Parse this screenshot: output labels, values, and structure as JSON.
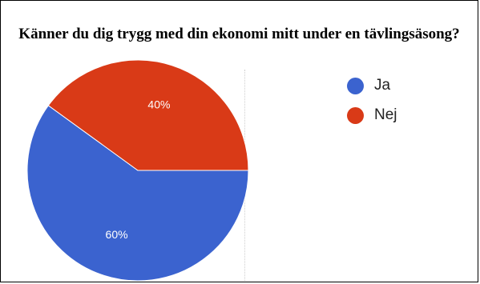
{
  "chart_data": {
    "type": "pie",
    "title": "Känner du dig trygg med din ekonomi mitt under en tävlingsäsong?",
    "series": [
      {
        "name": "Ja",
        "value": 60,
        "label": "60%",
        "color": "#3b63cf"
      },
      {
        "name": "Nej",
        "value": 40,
        "label": "40%",
        "color": "#d93a17"
      }
    ],
    "start_direction": "horizontal-right",
    "slice_direction": "counterclockwise from Ja",
    "legend_position": "right"
  }
}
